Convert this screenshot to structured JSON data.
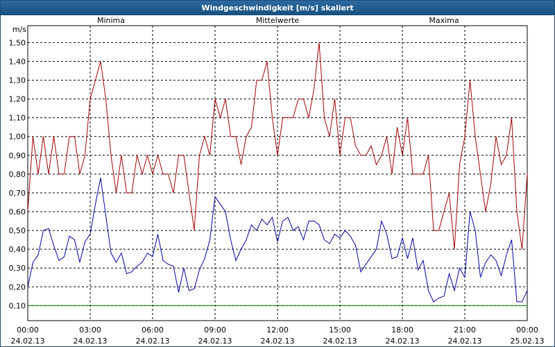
{
  "chart_data": {
    "type": "line",
    "title": "Windgeschwindigkeit [m/s] skaliert",
    "y_unit": "m/s",
    "x": [
      0,
      0.25,
      0.5,
      0.75,
      1,
      1.25,
      1.5,
      1.75,
      2,
      2.25,
      2.5,
      2.75,
      3,
      3.25,
      3.5,
      3.75,
      4,
      4.25,
      4.5,
      4.75,
      5,
      5.25,
      5.5,
      5.75,
      6,
      6.25,
      6.5,
      6.75,
      7,
      7.25,
      7.5,
      7.75,
      8,
      8.25,
      8.5,
      8.75,
      9,
      9.25,
      9.5,
      9.75,
      10,
      10.25,
      10.5,
      10.75,
      11,
      11.25,
      11.5,
      11.75,
      12,
      12.25,
      12.5,
      12.75,
      13,
      13.25,
      13.5,
      13.75,
      14,
      14.25,
      14.5,
      14.75,
      15,
      15.25,
      15.5,
      15.75,
      16,
      16.25,
      16.5,
      16.75,
      17,
      17.25,
      17.5,
      17.75,
      18,
      18.25,
      18.5,
      18.75,
      19,
      19.25,
      19.5,
      19.75,
      20,
      20.25,
      20.5,
      20.75,
      21,
      21.25,
      21.5,
      21.75,
      22,
      22.25,
      22.5,
      22.75,
      23,
      23.25,
      23.5,
      23.75,
      24
    ],
    "xlim": [
      0,
      24
    ],
    "xticks": [
      {
        "value": 0,
        "label": "00:00",
        "date": "24.02.13"
      },
      {
        "value": 3,
        "label": "03:00",
        "date": "24.02.13"
      },
      {
        "value": 6,
        "label": "06:00",
        "date": "24.02.13"
      },
      {
        "value": 9,
        "label": "09:00",
        "date": "24.02.13"
      },
      {
        "value": 12,
        "label": "12:00",
        "date": "24.02.13"
      },
      {
        "value": 15,
        "label": "15:00",
        "date": "24.02.13"
      },
      {
        "value": 18,
        "label": "18:00",
        "date": "24.02.13"
      },
      {
        "value": 21,
        "label": "21:00",
        "date": "24.02.13"
      },
      {
        "value": 24,
        "label": "00:00",
        "date": "25.02.13"
      }
    ],
    "ylim": [
      0.02,
      1.59
    ],
    "yticks": [
      {
        "value": 0.1,
        "label": "0,10"
      },
      {
        "value": 0.2,
        "label": "0,20"
      },
      {
        "value": 0.3,
        "label": "0,30"
      },
      {
        "value": 0.4,
        "label": "0,40"
      },
      {
        "value": 0.5,
        "label": "0,50"
      },
      {
        "value": 0.6,
        "label": "0,60"
      },
      {
        "value": 0.7,
        "label": "0,70"
      },
      {
        "value": 0.8,
        "label": "0,80"
      },
      {
        "value": 0.9,
        "label": "0,90"
      },
      {
        "value": 1.0,
        "label": "1,00"
      },
      {
        "value": 1.1,
        "label": "1,10"
      },
      {
        "value": 1.2,
        "label": "1,20"
      },
      {
        "value": 1.3,
        "label": "1,30"
      },
      {
        "value": 1.4,
        "label": "1,40"
      },
      {
        "value": 1.5,
        "label": "1,50"
      }
    ],
    "grid": true,
    "series": [
      {
        "name": "Minima",
        "color": "#008000",
        "values": [
          0.1,
          0.1,
          0.1,
          0.1,
          0.1,
          0.1,
          0.1,
          0.1,
          0.1,
          0.1,
          0.1,
          0.1,
          0.1,
          0.1,
          0.1,
          0.1,
          0.1,
          0.1,
          0.1,
          0.1,
          0.1,
          0.1,
          0.1,
          0.1,
          0.1,
          0.1,
          0.1,
          0.1,
          0.1,
          0.1,
          0.1,
          0.1,
          0.1,
          0.1,
          0.1,
          0.1,
          0.1,
          0.1,
          0.1,
          0.1,
          0.1,
          0.1,
          0.1,
          0.1,
          0.1,
          0.1,
          0.1,
          0.1,
          0.1,
          0.1,
          0.1,
          0.1,
          0.1,
          0.1,
          0.1,
          0.1,
          0.1,
          0.1,
          0.1,
          0.1,
          0.1,
          0.1,
          0.1,
          0.1,
          0.1,
          0.1,
          0.1,
          0.1,
          0.1,
          0.1,
          0.1,
          0.1,
          0.1,
          0.1,
          0.1,
          0.1,
          0.1,
          0.1,
          0.1,
          0.1,
          0.1,
          0.1,
          0.1,
          0.1,
          0.1,
          0.1,
          0.1,
          0.1,
          0.1,
          0.1,
          0.1,
          0.1,
          0.1,
          0.1,
          0.1,
          0.1,
          0.1
        ]
      },
      {
        "name": "Mittelwerte",
        "color": "#0000a0",
        "values": [
          0.2,
          0.33,
          0.37,
          0.5,
          0.51,
          0.42,
          0.34,
          0.36,
          0.47,
          0.45,
          0.33,
          0.44,
          0.48,
          0.64,
          0.78,
          0.58,
          0.38,
          0.33,
          0.38,
          0.27,
          0.28,
          0.31,
          0.33,
          0.38,
          0.36,
          0.48,
          0.34,
          0.32,
          0.31,
          0.17,
          0.3,
          0.18,
          0.19,
          0.29,
          0.35,
          0.45,
          0.68,
          0.64,
          0.6,
          0.45,
          0.34,
          0.4,
          0.45,
          0.53,
          0.5,
          0.56,
          0.53,
          0.57,
          0.44,
          0.55,
          0.57,
          0.5,
          0.52,
          0.45,
          0.55,
          0.55,
          0.53,
          0.45,
          0.43,
          0.48,
          0.46,
          0.5,
          0.47,
          0.42,
          0.28,
          0.32,
          0.36,
          0.4,
          0.55,
          0.48,
          0.35,
          0.36,
          0.46,
          0.35,
          0.46,
          0.29,
          0.34,
          0.18,
          0.12,
          0.14,
          0.15,
          0.27,
          0.18,
          0.3,
          0.25,
          0.6,
          0.5,
          0.25,
          0.33,
          0.37,
          0.34,
          0.26,
          0.37,
          0.45,
          0.12,
          0.12,
          0.18
        ]
      },
      {
        "name": "Maxima",
        "color": "#a00000",
        "values": [
          0.6,
          1.0,
          0.8,
          1.0,
          0.8,
          1.0,
          0.8,
          0.8,
          1.0,
          1.0,
          0.8,
          0.9,
          1.2,
          1.3,
          1.4,
          1.2,
          0.9,
          0.7,
          0.9,
          0.7,
          0.7,
          0.9,
          0.8,
          0.9,
          0.8,
          0.9,
          0.8,
          0.8,
          0.7,
          0.9,
          0.9,
          0.7,
          0.5,
          0.9,
          1.0,
          0.9,
          1.2,
          1.1,
          1.2,
          1.0,
          1.0,
          0.85,
          1.0,
          1.05,
          1.3,
          1.3,
          1.4,
          1.1,
          0.9,
          1.1,
          1.1,
          1.1,
          1.2,
          1.2,
          1.1,
          1.25,
          1.5,
          1.1,
          1.0,
          1.2,
          0.9,
          1.1,
          1.1,
          0.95,
          0.9,
          0.9,
          0.95,
          0.85,
          0.9,
          1.0,
          0.8,
          1.05,
          0.9,
          1.1,
          0.8,
          0.8,
          0.8,
          0.9,
          0.5,
          0.5,
          0.6,
          0.7,
          0.4,
          0.85,
          1.0,
          1.3,
          1.0,
          0.8,
          0.6,
          0.75,
          1.0,
          0.85,
          0.9,
          1.1,
          0.6,
          0.4,
          0.8
        ]
      }
    ]
  }
}
